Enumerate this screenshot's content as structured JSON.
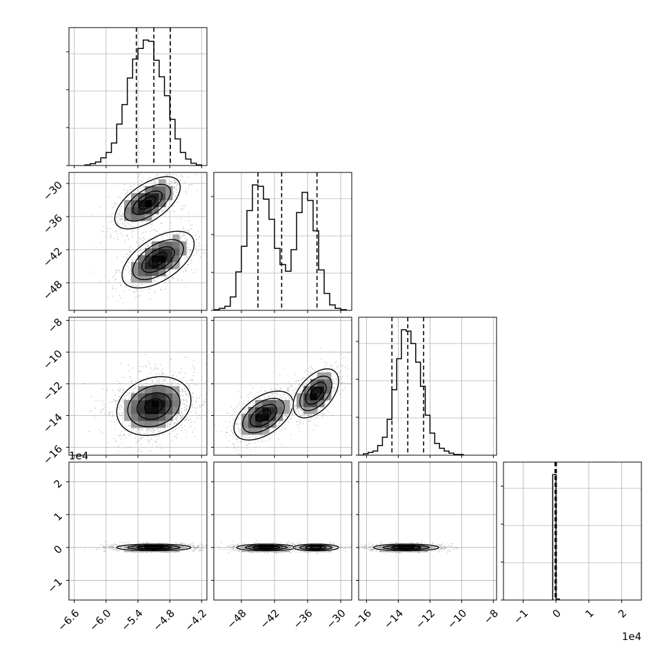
{
  "chart_data": {
    "type": "corner",
    "grid": true,
    "colors": {
      "hist": "#000000",
      "density": "#000000",
      "points": "#9a9a9a",
      "quantile_line": "#000000"
    },
    "parameters": [
      {
        "index": 0,
        "range": [
          -6.7,
          -4.1
        ],
        "ticks": [
          -6.6,
          -6.0,
          -5.4,
          -4.8,
          -4.2
        ],
        "tick_labels": [
          "−6.6",
          "−6.0",
          "−5.4",
          "−4.8",
          "−4.2"
        ],
        "quantiles": [
          -5.43,
          -5.1,
          -4.79
        ]
      },
      {
        "index": 1,
        "range": [
          -53,
          -28
        ],
        "ticks": [
          -48,
          -42,
          -36,
          -30
        ],
        "tick_labels": [
          "−48",
          "−42",
          "−36",
          "−30"
        ],
        "quantiles": [
          -45.0,
          -40.7,
          -34.3
        ]
      },
      {
        "index": 2,
        "range": [
          -16.5,
          -7.8
        ],
        "ticks": [
          -16,
          -14,
          -12,
          -10,
          -8
        ],
        "tick_labels": [
          "−16",
          "−14",
          "−12",
          "−10",
          "−8"
        ],
        "quantiles": [
          -14.4,
          -13.4,
          -12.4
        ]
      },
      {
        "index": 3,
        "range": [
          -1.6,
          2.6
        ],
        "ticks": [
          -1,
          0,
          1,
          2
        ],
        "tick_labels": [
          "−1",
          "0",
          "1",
          "2"
        ],
        "offset_label": "1e4",
        "quantiles": [
          -0.03,
          -0.01,
          0.01
        ]
      }
    ],
    "histograms": [
      {
        "param": 0,
        "bin_edges": [
          -6.4,
          -6.3,
          -6.2,
          -6.1,
          -6.0,
          -5.9,
          -5.8,
          -5.7,
          -5.6,
          -5.5,
          -5.4,
          -5.3,
          -5.2,
          -5.1,
          -5.0,
          -4.9,
          -4.8,
          -4.7,
          -4.6,
          -4.5,
          -4.4,
          -4.3,
          -4.2
        ],
        "counts": [
          1,
          3,
          6,
          13,
          22,
          38,
          70,
          103,
          148,
          180,
          198,
          212,
          210,
          178,
          150,
          118,
          78,
          45,
          22,
          11,
          4,
          1
        ]
      },
      {
        "param": 1,
        "bin_edges": [
          -53,
          -52,
          -51,
          -50,
          -49,
          -48,
          -47,
          -46,
          -45,
          -44,
          -43,
          -42,
          -41,
          -40,
          -39,
          -38,
          -37,
          -36,
          -35,
          -34,
          -33,
          -32,
          -31,
          -30,
          -29
        ],
        "counts": [
          1,
          3,
          6,
          20,
          57,
          95,
          148,
          186,
          184,
          165,
          135,
          92,
          68,
          58,
          90,
          145,
          175,
          163,
          118,
          60,
          25,
          8,
          3,
          1
        ]
      },
      {
        "param": 2,
        "bin_edges": [
          -16.5,
          -16.2,
          -15.9,
          -15.6,
          -15.3,
          -15.0,
          -14.7,
          -14.4,
          -14.1,
          -13.8,
          -13.5,
          -13.2,
          -12.9,
          -12.6,
          -12.3,
          -12.0,
          -11.7,
          -11.4,
          -11.1,
          -10.8,
          -10.5,
          -10.2,
          -9.9
        ],
        "counts": [
          0,
          2,
          4,
          6,
          14,
          26,
          52,
          95,
          140,
          182,
          180,
          162,
          135,
          100,
          58,
          32,
          17,
          10,
          6,
          3,
          1,
          1
        ]
      },
      {
        "param": 3,
        "bin_edges": [
          -0.1,
          0,
          0.1
        ],
        "counts": [
          1000,
          8
        ]
      }
    ],
    "pair_panels": [
      {
        "x_param": 0,
        "y_param": 1,
        "clusters": [
          {
            "mean": [
              -5.22,
              -33.5
            ],
            "sd": [
              0.3,
              2.3
            ],
            "corr": 0.6,
            "weight": 0.5
          },
          {
            "mean": [
              -5.02,
              -43.8
            ],
            "sd": [
              0.33,
              2.5
            ],
            "corr": 0.55,
            "weight": 0.5
          }
        ],
        "contour_levels": [
          0.12,
          0.35,
          0.65,
          0.88
        ]
      },
      {
        "x_param": 0,
        "y_param": 2,
        "clusters": [
          {
            "mean": [
              -5.1,
              -13.4
            ],
            "sd": [
              0.34,
              0.9
            ],
            "corr": 0.2,
            "weight": 1
          }
        ],
        "contour_levels": [
          0.12,
          0.35,
          0.65,
          0.88
        ]
      },
      {
        "x_param": 1,
        "y_param": 2,
        "clusters": [
          {
            "mean": [
              -44.0,
              -14.0
            ],
            "sd": [
              2.6,
              0.75
            ],
            "corr": 0.5,
            "weight": 0.5
          },
          {
            "mean": [
              -34.5,
              -12.6
            ],
            "sd": [
              2.0,
              0.75
            ],
            "corr": 0.5,
            "weight": 0.5
          }
        ],
        "contour_levels": [
          0.12,
          0.35,
          0.65,
          0.88
        ]
      },
      {
        "x_param": 0,
        "y_param": 3,
        "clusters": [
          {
            "mean": [
              -5.1,
              0
            ],
            "sd": [
              0.34,
              0.05
            ],
            "corr": 0,
            "weight": 1
          }
        ],
        "contour_levels": [
          0.12,
          0.35,
          0.65,
          0.88
        ]
      },
      {
        "x_param": 1,
        "y_param": 3,
        "clusters": [
          {
            "mean": [
              -43.5,
              0
            ],
            "sd": [
              2.6,
              0.05
            ],
            "corr": 0,
            "weight": 0.6
          },
          {
            "mean": [
              -34.5,
              0
            ],
            "sd": [
              2.0,
              0.05
            ],
            "corr": 0,
            "weight": 0.4
          }
        ],
        "contour_levels": [
          0.12,
          0.35,
          0.65,
          0.88
        ]
      },
      {
        "x_param": 2,
        "y_param": 3,
        "clusters": [
          {
            "mean": [
              -13.5,
              0
            ],
            "sd": [
              1.0,
              0.05
            ],
            "corr": 0,
            "weight": 1
          }
        ],
        "contour_levels": [
          0.12,
          0.35,
          0.65,
          0.88
        ]
      }
    ]
  }
}
